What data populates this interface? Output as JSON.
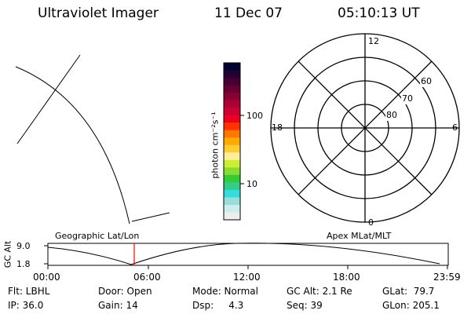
{
  "header": {
    "instrument": "Ultraviolet Imager",
    "date": "11 Dec 07",
    "time": "05:10:13 UT"
  },
  "colorbar": {
    "label": "photon cm⁻²s⁻¹",
    "tick_upper": "100",
    "tick_lower": "10",
    "colors": [
      "#000033",
      "#220033",
      "#440033",
      "#660033",
      "#880033",
      "#aa0033",
      "#cc0033",
      "#ee0022",
      "#ff3300",
      "#ff7700",
      "#ffaa00",
      "#ffcc33",
      "#ffee99",
      "#ccee33",
      "#88dd33",
      "#33cc33",
      "#33cc88",
      "#33dddd",
      "#99dddd",
      "#cceeee",
      "#eeeeee"
    ]
  },
  "polar": {
    "label_top": "12",
    "label_left": "18",
    "label_right": "6",
    "label_bottom": "0",
    "ring_60": "60",
    "ring_70": "70",
    "ring_80": "80"
  },
  "timeline": {
    "ylabel": "GC Alt",
    "ytick_top": "9.0",
    "ytick_bottom": "1.8",
    "left_caption": "Geographic Lat/Lon",
    "right_caption": "Apex MLat/MLT",
    "xticks": [
      "00:00",
      "06:00",
      "12:00",
      "18:00",
      "23:59"
    ],
    "marker_color": "#ff0000"
  },
  "status": {
    "flt": "Flt: LBHL",
    "ip": "IP: 36.0",
    "door": "Door: Open",
    "gain": "Gain: 14",
    "mode": "Mode: Normal",
    "dsp": "Dsp:     4.3",
    "gc_alt": "GC Alt: 2.1 Re",
    "seq": "Seq: 39",
    "glat": "GLat:  79.7",
    "glon": "GLon: 205.1"
  }
}
